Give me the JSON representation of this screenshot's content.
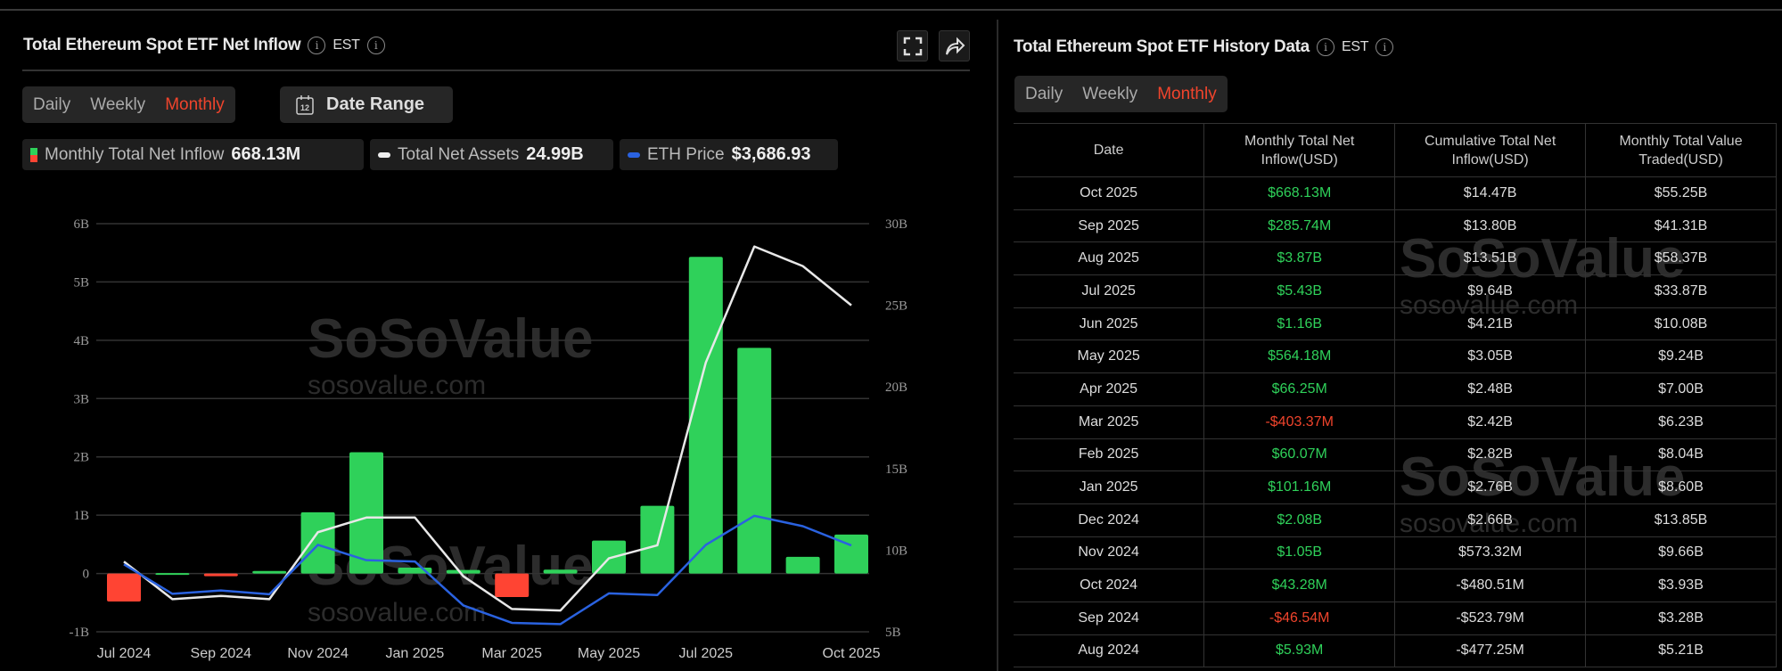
{
  "left": {
    "title": "Total Ethereum Spot ETF Net Inflow",
    "tz": "EST",
    "tabs": [
      "Daily",
      "Weekly",
      "Monthly"
    ],
    "active_tab": "Monthly",
    "date_range": "Date Range",
    "legend": [
      {
        "label": "Monthly Total Net Inflow",
        "value": "668.13M"
      },
      {
        "label": "Total Net Assets",
        "value": "24.99B"
      },
      {
        "label": "ETH Price",
        "value": "$3,686.93"
      }
    ],
    "watermark": "SoSoValue",
    "watermark_url": "sosovalue.com"
  },
  "colors": {
    "positive": "#2fd15a",
    "negative": "#ff4433",
    "assets": "#e8e8e8",
    "eth": "#2a62e0",
    "accent": "#f0442c"
  },
  "chart_data": {
    "type": "bar",
    "categories": [
      "Jul 2024",
      "Aug 2024",
      "Sep 2024",
      "Oct 2024",
      "Nov 2024",
      "Dec 2024",
      "Jan 2025",
      "Feb 2025",
      "Mar 2025",
      "Apr 2025",
      "May 2025",
      "Jun 2025",
      "Jul 2025",
      "Aug 2025",
      "Sep 2025",
      "Oct 2025"
    ],
    "x_tick_labels": [
      "Jul 2024",
      "Sep 2024",
      "Nov 2024",
      "Jan 2025",
      "Mar 2025",
      "May 2025",
      "Jul 2025",
      "Oct 2025"
    ],
    "series": [
      {
        "name": "Monthly Total Net Inflow",
        "axis": "left",
        "type": "bar",
        "values": [
          -0.48,
          0.006,
          -0.047,
          0.043,
          1.05,
          2.08,
          0.101,
          0.06,
          -0.403,
          0.066,
          0.564,
          1.16,
          5.43,
          3.87,
          0.286,
          0.668
        ]
      },
      {
        "name": "Total Net Assets",
        "axis": "right",
        "type": "line",
        "values": [
          9.3,
          7.0,
          7.2,
          7.0,
          11.1,
          12.0,
          12.0,
          8.4,
          6.4,
          6.3,
          9.5,
          10.3,
          21.5,
          28.6,
          27.4,
          25.0
        ]
      },
      {
        "name": "ETH Price",
        "axis": "hidden",
        "type": "line",
        "values": [
          3230,
          2520,
          2600,
          2510,
          3700,
          3330,
          3300,
          2240,
          1820,
          1790,
          2530,
          2490,
          3700,
          4400,
          4150,
          3687
        ]
      }
    ],
    "left_axis": {
      "ylim": [
        -1,
        6
      ],
      "ticks": [
        "-1B",
        "0",
        "1B",
        "2B",
        "3B",
        "4B",
        "5B",
        "6B"
      ]
    },
    "right_axis": {
      "ylim": [
        5,
        30
      ],
      "ticks": [
        "5B",
        "10B",
        "15B",
        "20B",
        "25B",
        "30B"
      ]
    },
    "price_axis": {
      "ylim": [
        1605,
        11440
      ]
    }
  },
  "right": {
    "title": "Total Ethereum Spot ETF History Data",
    "tz": "EST",
    "tabs": [
      "Daily",
      "Weekly",
      "Monthly"
    ],
    "headers": [
      "Date",
      "Monthly Total Net Inflow(USD)",
      "Cumulative Total Net Inflow(USD)",
      "Monthly Total Value Traded(USD)"
    ],
    "rows": [
      [
        "Oct 2025",
        "$668.13M",
        "$14.47B",
        "$55.25B"
      ],
      [
        "Sep 2025",
        "$285.74M",
        "$13.80B",
        "$41.31B"
      ],
      [
        "Aug 2025",
        "$3.87B",
        "$13.51B",
        "$58.37B"
      ],
      [
        "Jul 2025",
        "$5.43B",
        "$9.64B",
        "$33.87B"
      ],
      [
        "Jun 2025",
        "$1.16B",
        "$4.21B",
        "$10.08B"
      ],
      [
        "May 2025",
        "$564.18M",
        "$3.05B",
        "$9.24B"
      ],
      [
        "Apr 2025",
        "$66.25M",
        "$2.48B",
        "$7.00B"
      ],
      [
        "Mar 2025",
        "-$403.37M",
        "$2.42B",
        "$6.23B"
      ],
      [
        "Feb 2025",
        "$60.07M",
        "$2.82B",
        "$8.04B"
      ],
      [
        "Jan 2025",
        "$101.16M",
        "$2.76B",
        "$8.60B"
      ],
      [
        "Dec 2024",
        "$2.08B",
        "$2.66B",
        "$13.85B"
      ],
      [
        "Nov 2024",
        "$1.05B",
        "$573.32M",
        "$9.66B"
      ],
      [
        "Oct 2024",
        "$43.28M",
        "-$480.51M",
        "$3.93B"
      ],
      [
        "Sep 2024",
        "-$46.54M",
        "-$523.79M",
        "$3.28B"
      ],
      [
        "Aug 2024",
        "$5.93M",
        "-$477.25M",
        "$5.21B"
      ]
    ]
  }
}
